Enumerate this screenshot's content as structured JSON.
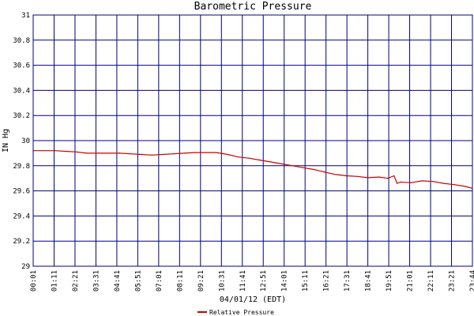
{
  "chart_data": {
    "type": "line",
    "title": "Barometric Pressure",
    "xlabel": "04/01/12 (EDT)",
    "ylabel": "IN Hg",
    "ylim": [
      29,
      31
    ],
    "yticks": [
      29,
      29.2,
      29.4,
      29.6,
      29.8,
      30,
      30.2,
      30.4,
      30.6,
      30.8,
      31
    ],
    "ytick_labels": [
      "29",
      "29.2",
      "29.4",
      "29.6",
      "29.8",
      "30",
      "30.2",
      "30.4",
      "30.6",
      "30.8",
      "31"
    ],
    "xtick_labels": [
      "00:01",
      "01:11",
      "02:21",
      "03:31",
      "04:41",
      "05:51",
      "07:01",
      "08:11",
      "09:21",
      "10:31",
      "11:41",
      "12:51",
      "14:01",
      "15:11",
      "16:21",
      "17:31",
      "18:41",
      "19:51",
      "21:01",
      "22:11",
      "23:21",
      "23:44"
    ],
    "grid": true,
    "legend_position": "bottom-center",
    "background_color": "#ffffff",
    "grid_color": "#000080",
    "series": [
      {
        "name": "Relative Pressure",
        "color": "#cc0000",
        "x": [
          "00:01",
          "00:30",
          "01:11",
          "01:45",
          "02:21",
          "02:55",
          "03:31",
          "04:05",
          "04:41",
          "05:15",
          "05:51",
          "06:25",
          "07:01",
          "07:35",
          "08:11",
          "08:45",
          "09:21",
          "09:55",
          "10:31",
          "11:05",
          "11:41",
          "12:15",
          "12:51",
          "13:25",
          "14:01",
          "14:35",
          "15:11",
          "15:45",
          "16:21",
          "16:55",
          "17:31",
          "18:05",
          "18:41",
          "19:10",
          "19:30",
          "19:40",
          "19:51",
          "20:25",
          "21:01",
          "21:35",
          "22:11",
          "22:45",
          "23:21",
          "23:44"
        ],
        "values": [
          29.92,
          29.92,
          29.92,
          29.915,
          29.91,
          29.9,
          29.9,
          29.9,
          29.9,
          29.895,
          29.89,
          29.885,
          29.89,
          29.895,
          29.9,
          29.905,
          29.905,
          29.905,
          29.89,
          29.87,
          29.86,
          29.845,
          29.83,
          29.815,
          29.8,
          29.785,
          29.77,
          29.75,
          29.73,
          29.72,
          29.715,
          29.705,
          29.71,
          29.7,
          29.72,
          29.66,
          29.67,
          29.665,
          29.68,
          29.675,
          29.66,
          29.65,
          29.635,
          29.62
        ]
      }
    ]
  }
}
